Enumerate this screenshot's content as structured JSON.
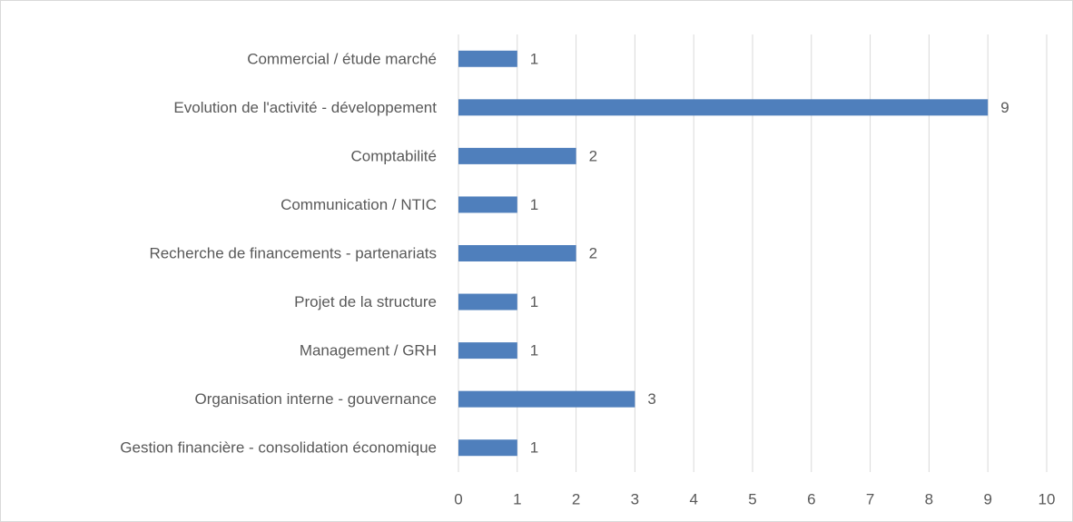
{
  "chart_data": {
    "type": "barh",
    "categories": [
      "Commercial / étude marché",
      "Evolution de l'activité - développement",
      "Comptabilité",
      "Communication / NTIC",
      "Recherche de financements - partenariats",
      "Projet de la structure",
      "Management / GRH",
      "Organisation interne - gouvernance",
      "Gestion financière - consolidation économique"
    ],
    "values": [
      1,
      9,
      2,
      1,
      2,
      1,
      1,
      3,
      1
    ],
    "color": "#4f7fbc",
    "xlim": [
      0,
      10
    ],
    "xticks": [
      0,
      1,
      2,
      3,
      4,
      5,
      6,
      7,
      8,
      9,
      10
    ],
    "grid": true
  }
}
